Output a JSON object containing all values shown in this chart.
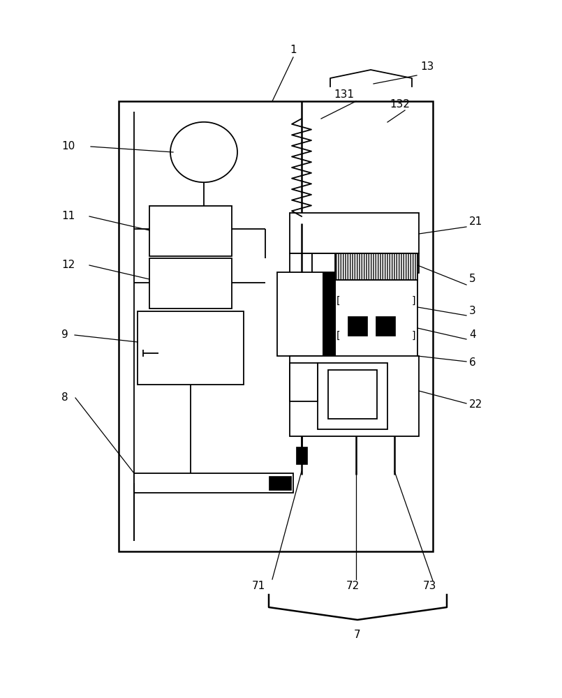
{
  "bg_color": "#ffffff",
  "line_color": "#000000",
  "lw": 1.3,
  "lw2": 1.8
}
